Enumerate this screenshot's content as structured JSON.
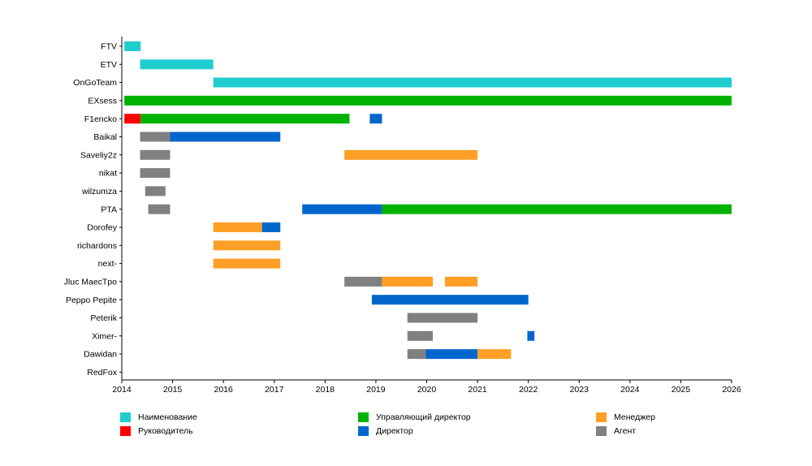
{
  "chart_data": {
    "type": "gantt",
    "x_ticks": [
      "2014",
      "2015",
      "2016",
      "2017",
      "2018",
      "2019",
      "2020",
      "2021",
      "2022",
      "2023",
      "2024",
      "2025",
      "2026"
    ],
    "xlim": [
      2014,
      2026
    ],
    "rows": [
      "FTV",
      "ETV",
      "OnGoTeam",
      "EXsess",
      "F1encko",
      "Baikal",
      "Saveliy2z",
      "nikat",
      "wilzumza",
      "PTA",
      "Dorofey",
      "richardons",
      "next-",
      "Jluc MaecTpo",
      "Peppo Pepite",
      "Peterik",
      "Ximer-",
      "Dawidan",
      "RedFox"
    ],
    "roles": [
      {
        "key": "name",
        "label": "Наименование",
        "color": "#1fcdcf"
      },
      {
        "key": "head",
        "label": "Руководитель",
        "color": "#ff0000"
      },
      {
        "key": "md",
        "label": "Управляющий директор",
        "color": "#00b300"
      },
      {
        "key": "director",
        "label": "Директор",
        "color": "#0066cc"
      },
      {
        "key": "manager",
        "label": "Менеджер",
        "color": "#ff9f26"
      },
      {
        "key": "agent",
        "label": "Агент",
        "color": "#808080"
      }
    ],
    "bars": [
      {
        "row": "FTV",
        "role": "name",
        "start": 2014.05,
        "end": 2014.37
      },
      {
        "row": "ETV",
        "role": "name",
        "start": 2014.36,
        "end": 2015.8
      },
      {
        "row": "OnGoTeam",
        "role": "name",
        "start": 2015.8,
        "end": 2026.0
      },
      {
        "row": "EXsess",
        "role": "md",
        "start": 2014.05,
        "end": 2026.0
      },
      {
        "row": "F1encko",
        "role": "head",
        "start": 2014.05,
        "end": 2014.37
      },
      {
        "row": "F1encko",
        "role": "md",
        "start": 2014.37,
        "end": 2018.48
      },
      {
        "row": "F1encko",
        "role": "director",
        "start": 2018.88,
        "end": 2019.12
      },
      {
        "row": "Baikal",
        "role": "agent",
        "start": 2014.36,
        "end": 2014.95
      },
      {
        "row": "Baikal",
        "role": "director",
        "start": 2014.95,
        "end": 2017.12
      },
      {
        "row": "Saveliy2z",
        "role": "agent",
        "start": 2014.36,
        "end": 2014.95
      },
      {
        "row": "Saveliy2z",
        "role": "manager",
        "start": 2018.38,
        "end": 2021.0
      },
      {
        "row": "nikat",
        "role": "agent",
        "start": 2014.36,
        "end": 2014.95
      },
      {
        "row": "wilzumza",
        "role": "agent",
        "start": 2014.46,
        "end": 2014.86
      },
      {
        "row": "PTA",
        "role": "agent",
        "start": 2014.52,
        "end": 2014.95
      },
      {
        "row": "PTA",
        "role": "director",
        "start": 2017.55,
        "end": 2019.12
      },
      {
        "row": "PTA",
        "role": "md",
        "start": 2019.12,
        "end": 2026.0
      },
      {
        "row": "Dorofey",
        "role": "manager",
        "start": 2015.8,
        "end": 2016.76
      },
      {
        "row": "Dorofey",
        "role": "director",
        "start": 2016.76,
        "end": 2017.12
      },
      {
        "row": "richardons",
        "role": "manager",
        "start": 2015.8,
        "end": 2017.12
      },
      {
        "row": "next-",
        "role": "manager",
        "start": 2015.8,
        "end": 2017.12
      },
      {
        "row": "Jluc MaecTpo",
        "role": "agent",
        "start": 2018.38,
        "end": 2019.12
      },
      {
        "row": "Jluc MaecTpo",
        "role": "manager",
        "start": 2019.12,
        "end": 2020.12
      },
      {
        "row": "Jluc MaecTpo",
        "role": "manager",
        "start": 2020.36,
        "end": 2021.0
      },
      {
        "row": "Peppo Pepite",
        "role": "director",
        "start": 2018.92,
        "end": 2022.0
      },
      {
        "row": "Peterik",
        "role": "agent",
        "start": 2019.62,
        "end": 2021.0
      },
      {
        "row": "Ximer-",
        "role": "agent",
        "start": 2019.62,
        "end": 2020.12
      },
      {
        "row": "Ximer-",
        "role": "director",
        "start": 2021.98,
        "end": 2022.12
      },
      {
        "row": "Dawidan",
        "role": "agent",
        "start": 2019.62,
        "end": 2019.98
      },
      {
        "row": "Dawidan",
        "role": "director",
        "start": 2019.98,
        "end": 2021.0
      },
      {
        "row": "Dawidan",
        "role": "manager",
        "start": 2021.0,
        "end": 2021.66
      }
    ],
    "legend_placement": "bottom",
    "grid": false
  }
}
